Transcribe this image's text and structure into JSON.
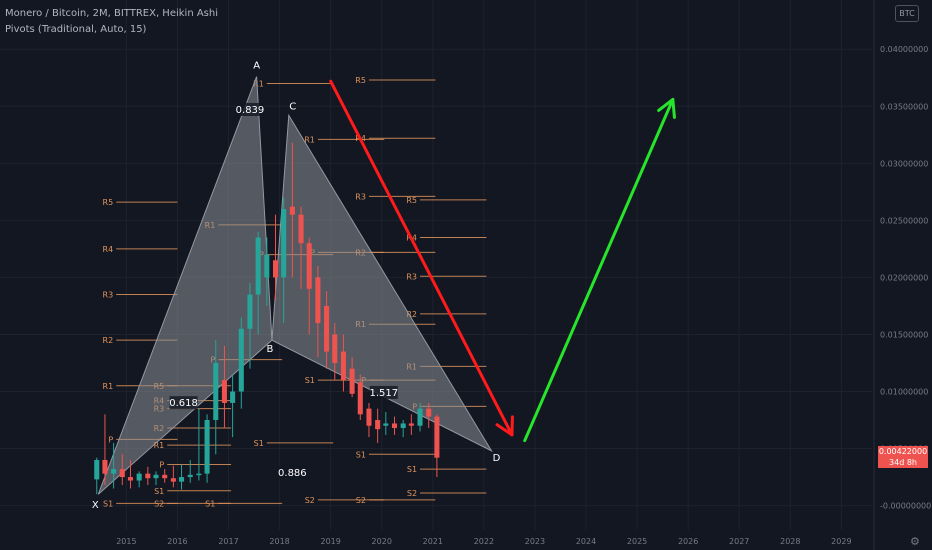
{
  "header": {
    "title": "Monero / Bitcoin, 2M, BITTREX, Heikin Ashi",
    "indicator": "Pivots (Traditional, Auto, 15)"
  },
  "currency_badge": "BTC",
  "price_tag": {
    "price": "0.00422000",
    "countdown": "34d 8h"
  },
  "colors": {
    "background": "#131722",
    "up": "#26a69a",
    "down": "#ef5350",
    "pattern_fill": "#8c8f96",
    "pivot_line": "#e0935a",
    "forecast_down": "#ff1b1b",
    "forecast_up": "#26e52b"
  },
  "chart_data": {
    "type": "candlestick",
    "yaxis": {
      "ticks": [
        "0.04000000",
        "0.03500000",
        "0.03000000",
        "0.02500000",
        "0.02000000",
        "0.01500000",
        "0.01000000",
        "0.00500000",
        "-0.00000000"
      ],
      "tick_values": [
        0.04,
        0.035,
        0.03,
        0.025,
        0.02,
        0.015,
        0.01,
        0.005,
        0.0
      ],
      "ylim": [
        -0.0017,
        0.043
      ]
    },
    "xaxis": {
      "ticks": [
        "2015",
        "2016",
        "2017",
        "2018",
        "2019",
        "2020",
        "2021",
        "2022",
        "2023",
        "2024",
        "2025",
        "2026",
        "2027",
        "2028",
        "2029"
      ],
      "tick_years": [
        2015,
        2016,
        2017,
        2018,
        2019,
        2020,
        2021,
        2022,
        2023,
        2024,
        2025,
        2026,
        2027,
        2028,
        2029
      ],
      "xlim": [
        2013.7,
        2029.6
      ]
    },
    "candles": [
      {
        "t": 2014.42,
        "o": 0.0023,
        "h": 0.0042,
        "l": 0.001,
        "c": 0.004
      },
      {
        "t": 2014.58,
        "o": 0.004,
        "h": 0.008,
        "l": 0.0018,
        "c": 0.0028
      },
      {
        "t": 2014.75,
        "o": 0.0028,
        "h": 0.0055,
        "l": 0.0015,
        "c": 0.0032
      },
      {
        "t": 2014.92,
        "o": 0.0032,
        "h": 0.0045,
        "l": 0.0018,
        "c": 0.0025
      },
      {
        "t": 2015.08,
        "o": 0.0025,
        "h": 0.004,
        "l": 0.0015,
        "c": 0.0022
      },
      {
        "t": 2015.25,
        "o": 0.0022,
        "h": 0.003,
        "l": 0.0016,
        "c": 0.0028
      },
      {
        "t": 2015.42,
        "o": 0.0028,
        "h": 0.0034,
        "l": 0.0018,
        "c": 0.0024
      },
      {
        "t": 2015.58,
        "o": 0.0024,
        "h": 0.003,
        "l": 0.0018,
        "c": 0.0027
      },
      {
        "t": 2015.75,
        "o": 0.0027,
        "h": 0.0032,
        "l": 0.002,
        "c": 0.0024
      },
      {
        "t": 2015.92,
        "o": 0.0024,
        "h": 0.0035,
        "l": 0.0016,
        "c": 0.0021
      },
      {
        "t": 2016.08,
        "o": 0.0021,
        "h": 0.0036,
        "l": 0.0014,
        "c": 0.0025
      },
      {
        "t": 2016.25,
        "o": 0.0025,
        "h": 0.004,
        "l": 0.002,
        "c": 0.0027
      },
      {
        "t": 2016.42,
        "o": 0.0027,
        "h": 0.0085,
        "l": 0.0022,
        "c": 0.0028
      },
      {
        "t": 2016.58,
        "o": 0.0028,
        "h": 0.008,
        "l": 0.002,
        "c": 0.0075
      },
      {
        "t": 2016.75,
        "o": 0.0075,
        "h": 0.0145,
        "l": 0.0045,
        "c": 0.0125
      },
      {
        "t": 2016.92,
        "o": 0.011,
        "h": 0.014,
        "l": 0.0068,
        "c": 0.009
      },
      {
        "t": 2017.08,
        "o": 0.009,
        "h": 0.0115,
        "l": 0.006,
        "c": 0.01
      },
      {
        "t": 2017.25,
        "o": 0.01,
        "h": 0.0165,
        "l": 0.0085,
        "c": 0.0155
      },
      {
        "t": 2017.42,
        "o": 0.0155,
        "h": 0.0195,
        "l": 0.012,
        "c": 0.0185
      },
      {
        "t": 2017.58,
        "o": 0.0185,
        "h": 0.024,
        "l": 0.015,
        "c": 0.0235
      },
      {
        "t": 2017.75,
        "o": 0.02,
        "h": 0.0235,
        "l": 0.0175,
        "c": 0.022
      },
      {
        "t": 2017.92,
        "o": 0.0215,
        "h": 0.0255,
        "l": 0.018,
        "c": 0.02
      },
      {
        "t": 2018.08,
        "o": 0.02,
        "h": 0.027,
        "l": 0.016,
        "c": 0.026
      },
      {
        "t": 2018.25,
        "o": 0.0262,
        "h": 0.0318,
        "l": 0.02,
        "c": 0.0255
      },
      {
        "t": 2018.42,
        "o": 0.0255,
        "h": 0.0262,
        "l": 0.019,
        "c": 0.023
      },
      {
        "t": 2018.58,
        "o": 0.023,
        "h": 0.0235,
        "l": 0.015,
        "c": 0.019
      },
      {
        "t": 2018.75,
        "o": 0.02,
        "h": 0.021,
        "l": 0.013,
        "c": 0.016
      },
      {
        "t": 2018.92,
        "o": 0.0175,
        "h": 0.0188,
        "l": 0.012,
        "c": 0.0135
      },
      {
        "t": 2019.08,
        "o": 0.015,
        "h": 0.016,
        "l": 0.011,
        "c": 0.0125
      },
      {
        "t": 2019.25,
        "o": 0.0135,
        "h": 0.015,
        "l": 0.01,
        "c": 0.011
      },
      {
        "t": 2019.42,
        "o": 0.012,
        "h": 0.013,
        "l": 0.0095,
        "c": 0.0098
      },
      {
        "t": 2019.58,
        "o": 0.0108,
        "h": 0.0115,
        "l": 0.0075,
        "c": 0.008
      },
      {
        "t": 2019.75,
        "o": 0.0085,
        "h": 0.009,
        "l": 0.006,
        "c": 0.007
      },
      {
        "t": 2019.92,
        "o": 0.0075,
        "h": 0.0085,
        "l": 0.0055,
        "c": 0.0067
      },
      {
        "t": 2020.08,
        "o": 0.007,
        "h": 0.0082,
        "l": 0.0062,
        "c": 0.0072
      },
      {
        "t": 2020.25,
        "o": 0.0072,
        "h": 0.0078,
        "l": 0.0062,
        "c": 0.0068
      },
      {
        "t": 2020.42,
        "o": 0.0068,
        "h": 0.0075,
        "l": 0.006,
        "c": 0.0072
      },
      {
        "t": 2020.58,
        "o": 0.0072,
        "h": 0.008,
        "l": 0.0062,
        "c": 0.007
      },
      {
        "t": 2020.75,
        "o": 0.007,
        "h": 0.009,
        "l": 0.0065,
        "c": 0.0085
      },
      {
        "t": 2020.92,
        "o": 0.0085,
        "h": 0.009,
        "l": 0.0068,
        "c": 0.0078
      },
      {
        "t": 2021.08,
        "o": 0.0078,
        "h": 0.008,
        "l": 0.0025,
        "c": 0.0042
      }
    ],
    "harmonic_pattern": {
      "points": [
        {
          "label": "X",
          "t": 2014.45,
          "v": 0.001
        },
        {
          "label": "A",
          "t": 2017.55,
          "v": 0.0376
        },
        {
          "label": "B",
          "t": 2017.85,
          "v": 0.0145
        },
        {
          "label": "C",
          "t": 2018.18,
          "v": 0.0342
        },
        {
          "label": "D",
          "t": 2022.15,
          "v": 0.0048
        }
      ],
      "ratios": [
        {
          "text": "0.839",
          "t": 2017.42,
          "v": 0.0345
        },
        {
          "text": "0.618",
          "t": 2016.12,
          "v": 0.0088
        },
        {
          "text": "1.517",
          "t": 2020.04,
          "v": 0.0097
        },
        {
          "text": "0.886",
          "t": 2018.25,
          "v": 0.0027
        }
      ]
    },
    "pivots": [
      {
        "x0": 2014.8,
        "x1": 2016.0,
        "levels": [
          {
            "l": "R5",
            "v": 0.0266
          },
          {
            "l": "R4",
            "v": 0.0225
          },
          {
            "l": "R3",
            "v": 0.0185
          },
          {
            "l": "R2",
            "v": 0.0145
          },
          {
            "l": "R1",
            "v": 0.0105
          },
          {
            "l": "P",
            "v": 0.0058
          },
          {
            "l": "S1",
            "v": 0.0002
          }
        ]
      },
      {
        "x0": 2015.8,
        "x1": 2017.05,
        "levels": [
          {
            "l": "R5",
            "v": 0.0105
          },
          {
            "l": "R4",
            "v": 0.0092
          },
          {
            "l": "R3",
            "v": 0.0085
          },
          {
            "l": "R2",
            "v": 0.0068
          },
          {
            "l": "R1",
            "v": 0.0053
          },
          {
            "l": "P",
            "v": 0.0036
          },
          {
            "l": "S1",
            "v": 0.0013
          },
          {
            "l": "S2",
            "v": 0.0002
          }
        ]
      },
      {
        "x0": 2016.8,
        "x1": 2018.05,
        "levels": [
          {
            "l": "R1",
            "v": 0.0246
          },
          {
            "l": "P",
            "v": 0.0128
          },
          {
            "l": "S1",
            "v": 0.0002
          }
        ]
      },
      {
        "x0": 2017.75,
        "x1": 2019.05,
        "levels": [
          {
            "l": "R1",
            "v": 0.037
          },
          {
            "l": "P",
            "v": 0.022
          },
          {
            "l": "S1",
            "v": 0.0055
          }
        ]
      },
      {
        "x0": 2018.75,
        "x1": 2020.05,
        "levels": [
          {
            "l": "R1",
            "v": 0.0321
          },
          {
            "l": "P",
            "v": 0.0222
          },
          {
            "l": "S1",
            "v": 0.011
          },
          {
            "l": "S2",
            "v": 0.0005
          }
        ]
      },
      {
        "x0": 2019.75,
        "x1": 2021.05,
        "levels": [
          {
            "l": "R5",
            "v": 0.0373
          },
          {
            "l": "R4",
            "v": 0.0322
          },
          {
            "l": "R3",
            "v": 0.0271
          },
          {
            "l": "R2",
            "v": 0.0222
          },
          {
            "l": "R1",
            "v": 0.0159
          },
          {
            "l": "P",
            "v": 0.011
          },
          {
            "l": "S1",
            "v": 0.0045
          },
          {
            "l": "S2",
            "v": 0.0005
          }
        ]
      },
      {
        "x0": 2020.75,
        "x1": 2022.05,
        "levels": [
          {
            "l": "R5",
            "v": 0.0268
          },
          {
            "l": "R4",
            "v": 0.0235
          },
          {
            "l": "R3",
            "v": 0.0201
          },
          {
            "l": "R2",
            "v": 0.0168
          },
          {
            "l": "R1",
            "v": 0.0122
          },
          {
            "l": "P",
            "v": 0.0087
          },
          {
            "l": "S1",
            "v": 0.0032
          },
          {
            "l": "S2",
            "v": 0.0011
          }
        ]
      }
    ],
    "forecast_arrows": [
      {
        "color": "down",
        "from": {
          "t": 2019.0,
          "v": 0.0372
        },
        "to": {
          "t": 2022.55,
          "v": 0.0062
        }
      },
      {
        "color": "up",
        "from": {
          "t": 2022.8,
          "v": 0.0057
        },
        "to": {
          "t": 2025.7,
          "v": 0.0356
        }
      }
    ]
  }
}
